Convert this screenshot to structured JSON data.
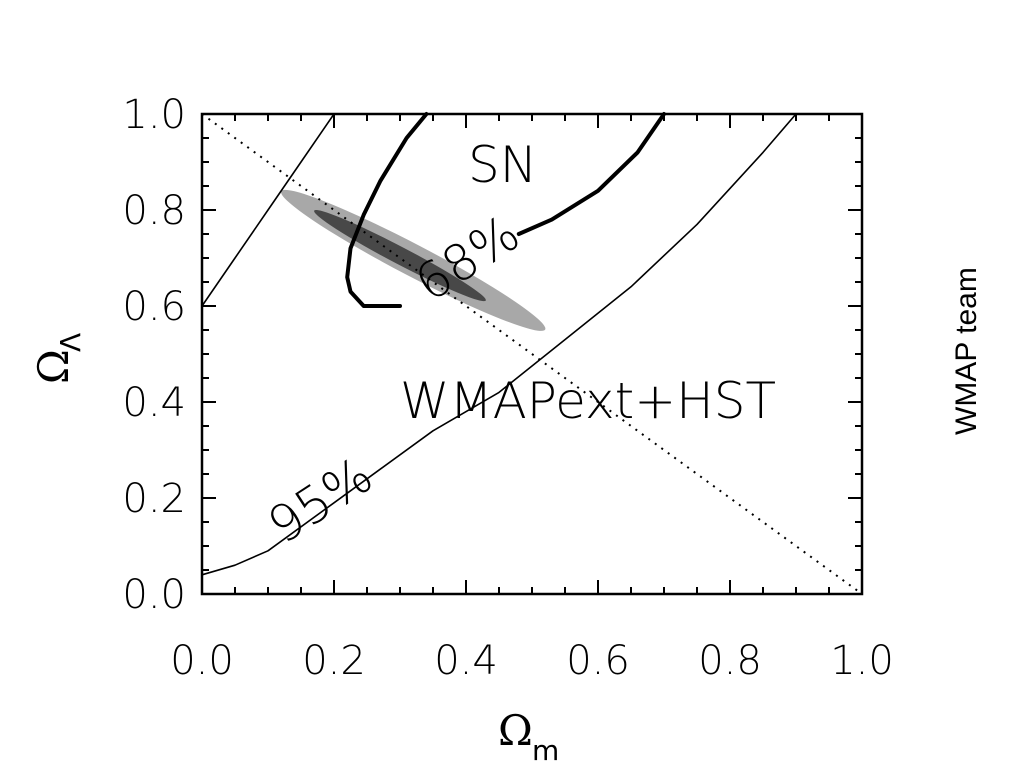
{
  "credit": "WMAP team",
  "chart_data": {
    "type": "contour",
    "xlabel": "Ω",
    "xlabel_sub": "m",
    "ylabel": "Ω",
    "ylabel_sub": "Λ",
    "xlim": [
      0.0,
      1.0
    ],
    "ylim": [
      0.0,
      1.0
    ],
    "x_ticks": [
      "0.0",
      "0.2",
      "0.4",
      "0.6",
      "0.8",
      "1.0"
    ],
    "y_ticks": [
      "0.0",
      "0.2",
      "0.4",
      "0.6",
      "0.8",
      "1.0"
    ],
    "flat_universe_line": {
      "points": [
        [
          0.0,
          1.0
        ],
        [
          1.0,
          0.0
        ]
      ],
      "style": "dotted"
    },
    "wmap_region": {
      "label": "WMAPext+HST",
      "outer_95": {
        "center": [
          0.32,
          0.695
        ],
        "semi_major": 0.2,
        "semi_minor": 0.033,
        "slope": -0.72,
        "color": "#a8a8a8"
      },
      "inner_68": {
        "center": [
          0.3,
          0.705
        ],
        "semi_major": 0.13,
        "semi_minor": 0.018,
        "slope": -0.72,
        "color": "#484848"
      }
    },
    "sn_contours": {
      "label": "SN",
      "levels": [
        {
          "label": "68%",
          "segments": [
            [
              [
                0.34,
                1.0
              ],
              [
                0.31,
                0.95
              ],
              [
                0.27,
                0.86
              ],
              [
                0.245,
                0.79
              ],
              [
                0.225,
                0.72
              ],
              [
                0.22,
                0.66
              ],
              [
                0.225,
                0.63
              ],
              [
                0.245,
                0.6
              ],
              [
                0.3,
                0.6
              ]
            ],
            [
              [
                0.48,
                0.75
              ],
              [
                0.53,
                0.78
              ],
              [
                0.6,
                0.84
              ],
              [
                0.66,
                0.92
              ],
              [
                0.7,
                1.0
              ]
            ]
          ]
        },
        {
          "label": "95%",
          "segments": [
            [
              [
                0.0,
                0.6
              ],
              [
                0.05,
                0.7
              ],
              [
                0.1,
                0.8
              ],
              [
                0.15,
                0.9
              ],
              [
                0.2,
                1.0
              ]
            ],
            [
              [
                0.0,
                0.04
              ],
              [
                0.05,
                0.06
              ],
              [
                0.1,
                0.09
              ],
              [
                0.2,
                0.19
              ],
              [
                0.27,
                0.26
              ],
              [
                0.35,
                0.34
              ],
              [
                0.45,
                0.42
              ],
              [
                0.55,
                0.53
              ],
              [
                0.65,
                0.64
              ],
              [
                0.75,
                0.77
              ],
              [
                0.85,
                0.92
              ],
              [
                0.9,
                1.0
              ]
            ]
          ]
        }
      ]
    }
  }
}
